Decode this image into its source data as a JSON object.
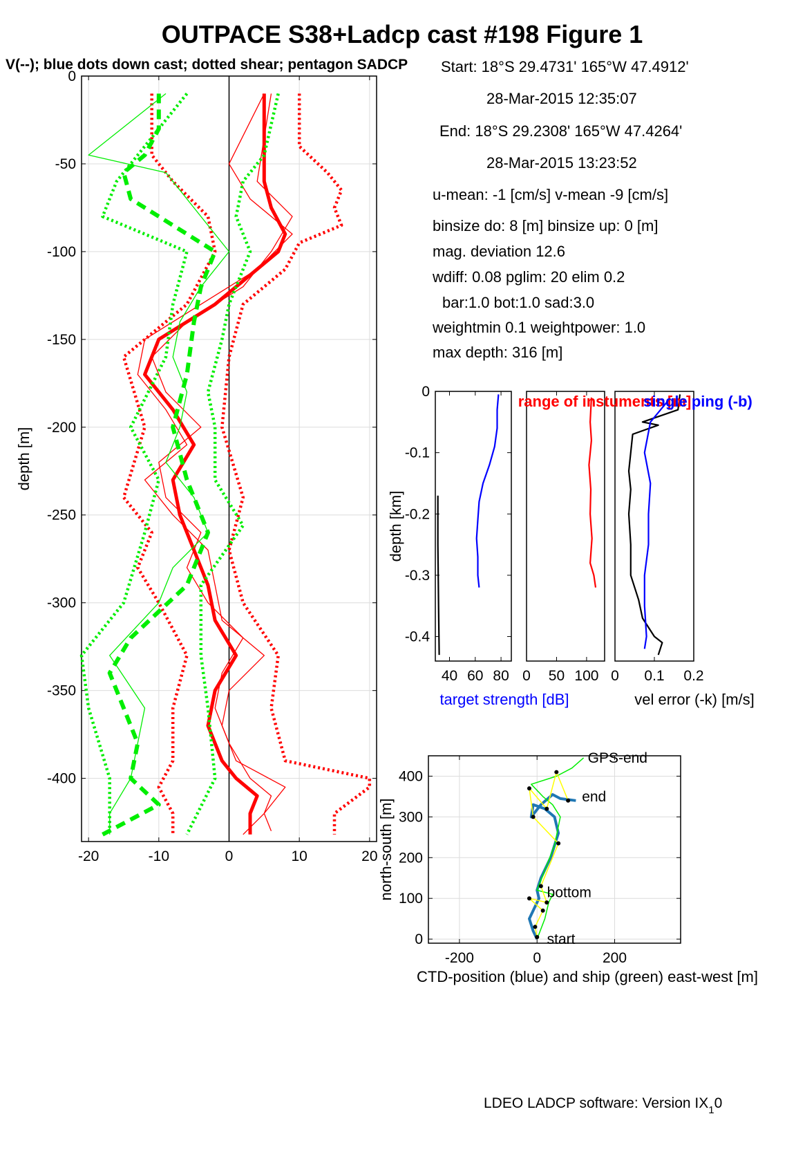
{
  "title": "OUTPACE S38+Ladcp cast #198  Figure 1",
  "subtitle": "V(--); blue dots down cast; dotted shear; pentagon SADCP",
  "info_lines": [
    "Start:  18°S 29.4731'      165°W 47.4912'",
    "28-Mar-2015 12:35:07",
    "End:   18°S 29.2308'      165°W 47.4264'",
    "28-Mar-2015 13:23:52",
    "u-mean:  -1 [cm/s]     v-mean  -9 [cm/s]",
    "binsize do: 8 [m]  binsize up:  0 [m]",
    "mag. deviation 12.6",
    "wdiff: 0.08  pglim: 20  elim 0.2",
    "bar:1.0 bot:1.0 sad:3.0",
    "weightmin 0.1  weightpower: 1.0",
    "max depth: 316 [m]"
  ],
  "footer": "LDEO LADCP software: Version IX",
  "footer_sub": "1",
  "footer_tail": "0",
  "colors": {
    "u": "#ff0000",
    "v": "#00ee00",
    "blue": "#0000ff",
    "black": "#000000",
    "yellow": "#ffff00",
    "ctd": "#1f77b4"
  },
  "chart_data": [
    {
      "type": "line",
      "id": "velocity_profile",
      "ylabel": "depth [m]",
      "xlim": [
        -21,
        21
      ],
      "ylim": [
        -436,
        0
      ],
      "xticks": [
        -20,
        -10,
        0,
        10,
        20
      ],
      "yticks": [
        0,
        -50,
        -100,
        -150,
        -200,
        -250,
        -300,
        -350,
        -400
      ],
      "grid": true,
      "series": [
        {
          "color": "u",
          "style": "thick",
          "depth": [
            -10,
            -60,
            -75,
            -90,
            -100,
            -110,
            -130,
            -150,
            -170,
            -190,
            -210,
            -230,
            -250,
            -270,
            -290,
            -310,
            -330,
            -350,
            -370,
            -390,
            -400,
            -410,
            -420,
            -432
          ],
          "x": [
            5,
            5,
            6,
            8,
            7,
            4,
            -2,
            -10,
            -12,
            -8,
            -5,
            -8,
            -7,
            -5,
            -3,
            -2,
            1,
            -2,
            -3,
            -1,
            1,
            4,
            3,
            3
          ]
        },
        {
          "color": "u",
          "style": "thin",
          "depth": [
            -10,
            -60,
            -80,
            -100,
            -120,
            -140,
            -160,
            -180,
            -200,
            -220,
            -240,
            -260,
            -280,
            -300,
            -320,
            -340,
            -360,
            -380,
            -400,
            -410,
            -420,
            -432
          ],
          "x": [
            6,
            4,
            9,
            6,
            2,
            -6,
            -11,
            -9,
            -4,
            -10,
            -9,
            -4,
            -6,
            -3,
            2,
            -1,
            -2,
            0,
            3,
            6,
            5,
            2
          ]
        },
        {
          "color": "u",
          "style": "thin",
          "depth": [
            -10,
            -50,
            -70,
            -90,
            -110,
            -130,
            -150,
            -170,
            -190,
            -210,
            -230,
            -250,
            -270,
            -290,
            -310,
            -330,
            -350,
            -370,
            -390,
            -405,
            -420,
            -430
          ],
          "x": [
            5,
            0,
            3,
            9,
            4,
            -4,
            -12,
            -13,
            -9,
            -6,
            -12,
            -8,
            -3,
            -2,
            -1,
            5,
            0,
            -1,
            1,
            8,
            5,
            6
          ]
        },
        {
          "color": "u",
          "style": "dotted",
          "depth": [
            -10,
            -45,
            -60,
            -80,
            -100,
            -130,
            -160,
            -200,
            -240,
            -260,
            -280,
            -300,
            -330,
            -360,
            -390,
            -405,
            -420,
            -432
          ],
          "x": [
            -11,
            -11,
            -8,
            -3,
            -2,
            -6,
            -15,
            -12,
            -15,
            -11,
            -13,
            -10,
            -6,
            -8,
            -8,
            -10,
            -8,
            -8
          ]
        },
        {
          "color": "u",
          "style": "dotted",
          "depth": [
            -10,
            -40,
            -55,
            -65,
            -75,
            -85,
            -95,
            -110,
            -130,
            -160,
            -200,
            -240,
            -270,
            -300,
            -330,
            -360,
            -390,
            -400,
            -405,
            -420,
            -432
          ],
          "x": [
            10,
            10,
            14,
            16,
            15,
            16,
            10,
            8,
            2,
            0,
            -1,
            2,
            0,
            2,
            7,
            6,
            8,
            20,
            20,
            15,
            15
          ]
        },
        {
          "color": "v",
          "style": "dashed-thick",
          "depth": [
            -10,
            -30,
            -45,
            -55,
            -70,
            -85,
            -100,
            -120,
            -140,
            -170,
            -200,
            -230,
            -260,
            -290,
            -320,
            -340,
            -360,
            -380,
            -400,
            -415,
            -432
          ],
          "x": [
            -10,
            -10,
            -12,
            -15,
            -14,
            -8,
            -2,
            -4,
            -5,
            -6,
            -8,
            -6,
            -3,
            -6,
            -14,
            -17,
            -15,
            -13,
            -14,
            -10,
            -18
          ]
        },
        {
          "color": "v",
          "style": "thin",
          "depth": [
            -10,
            -45,
            -55,
            -80,
            -100,
            -120,
            -140,
            -160,
            -180,
            -200,
            -220,
            -240,
            -260,
            -280,
            -300,
            -330,
            -360,
            -380,
            -400,
            -420,
            -432
          ],
          "x": [
            -9,
            -20,
            -9,
            -4,
            0,
            -4,
            -7,
            -8,
            -6,
            -7,
            -9,
            -5,
            -3,
            -8,
            -10,
            -17,
            -12,
            -13,
            -14,
            -17,
            -17
          ]
        },
        {
          "color": "v",
          "style": "dotted",
          "depth": [
            -10,
            -40,
            -60,
            -80,
            -100,
            -130,
            -160,
            -200,
            -230,
            -260,
            -300,
            -330,
            -360,
            -400,
            -432
          ],
          "x": [
            -6,
            -12,
            -16,
            -18,
            -6,
            -8,
            -9,
            -14,
            -10,
            -12,
            -15,
            -21,
            -20,
            -17,
            -17
          ]
        },
        {
          "color": "v",
          "style": "dotted",
          "depth": [
            -10,
            -45,
            -60,
            -80,
            -100,
            -130,
            -150,
            -180,
            -200,
            -230,
            -256,
            -290,
            -330,
            -360,
            -400,
            -432
          ],
          "x": [
            7,
            5,
            2,
            1,
            3,
            0,
            -1,
            -3,
            -2,
            -2,
            2,
            -4,
            -4,
            -3,
            -2,
            -6
          ]
        }
      ]
    },
    {
      "type": "line",
      "id": "target_strength",
      "title": "range of instuments [m]",
      "title_color": "u",
      "ylabel": "depth [km]",
      "xlabel": "target strength [dB]",
      "xlim": [
        29,
        88
      ],
      "ylim": [
        -0.44,
        0
      ],
      "xticks": [
        40,
        60,
        80
      ],
      "yticks": [
        0,
        -0.1,
        -0.2,
        -0.3,
        -0.4
      ],
      "series": [
        {
          "color": "blue",
          "depth": [
            -0.005,
            -0.03,
            -0.06,
            -0.09,
            -0.12,
            -0.15,
            -0.18,
            -0.21,
            -0.24,
            -0.27,
            -0.3,
            -0.32
          ],
          "x": [
            78,
            77,
            77,
            75,
            71,
            66,
            63,
            62,
            61,
            62,
            62,
            63
          ]
        },
        {
          "color": "black",
          "depth": [
            -0.17,
            -0.25,
            -0.35,
            -0.43
          ],
          "x": [
            31,
            31,
            31.5,
            32
          ]
        }
      ]
    },
    {
      "type": "line",
      "id": "range",
      "xlim": [
        0,
        130
      ],
      "ylim": [
        -0.44,
        0
      ],
      "xticks": [
        0,
        50,
        100
      ],
      "series": [
        {
          "color": "u",
          "depth": [
            -0.01,
            -0.05,
            -0.08,
            -0.12,
            -0.16,
            -0.2,
            -0.24,
            -0.28,
            -0.3,
            -0.32
          ],
          "x": [
            108,
            106,
            108,
            104,
            107,
            106,
            109,
            106,
            112,
            115
          ]
        }
      ]
    },
    {
      "type": "line",
      "id": "vel_error",
      "title": "single ping (-b)",
      "title_color": "blue",
      "xlabel": "vel error (-k) [m/s]",
      "xlim": [
        0,
        0.2
      ],
      "ylim": [
        -0.44,
        0
      ],
      "xticks": [
        0,
        0.1,
        0.2
      ],
      "series": [
        {
          "color": "black",
          "depth": [
            -0.005,
            -0.03,
            -0.05,
            -0.055,
            -0.07,
            -0.1,
            -0.13,
            -0.16,
            -0.2,
            -0.25,
            -0.3,
            -0.34,
            -0.37,
            -0.4,
            -0.41,
            -0.43
          ],
          "x": [
            0.165,
            0.16,
            0.07,
            0.11,
            0.045,
            0.04,
            0.035,
            0.04,
            0.035,
            0.04,
            0.04,
            0.06,
            0.07,
            0.1,
            0.12,
            0.11
          ]
        },
        {
          "color": "blue",
          "depth": [
            -0.015,
            -0.05,
            -0.1,
            -0.15,
            -0.2,
            -0.25,
            -0.3,
            -0.35,
            -0.4,
            -0.42
          ],
          "x": [
            0.135,
            0.09,
            0.075,
            0.09,
            0.085,
            0.085,
            0.075,
            0.075,
            0.08,
            0.075
          ]
        }
      ]
    },
    {
      "type": "line",
      "id": "ship_track",
      "ylabel": "north-south [m]",
      "xlabel": "CTD-position (blue) and ship (green) east-west [m]",
      "xlim": [
        -280,
        370
      ],
      "ylim": [
        -10,
        450
      ],
      "xticks": [
        -200,
        0,
        200
      ],
      "yticks": [
        0,
        100,
        200,
        300,
        400
      ],
      "grid": true,
      "labels": [
        {
          "text": "GPS-end",
          "x": 120,
          "y": 445
        },
        {
          "text": "end",
          "x": 105,
          "y": 350
        },
        {
          "text": "bottom",
          "x": 15,
          "y": 115
        },
        {
          "text": "start",
          "x": 15,
          "y": 0
        }
      ],
      "series": [
        {
          "name": "ctd",
          "color": "ctd",
          "x": [
            0,
            -10,
            -20,
            -5,
            5,
            0,
            10,
            35,
            55,
            45,
            20,
            -10,
            -15,
            10,
            40,
            60,
            100
          ],
          "y": [
            0,
            20,
            50,
            80,
            100,
            120,
            150,
            200,
            260,
            300,
            320,
            330,
            300,
            330,
            355,
            345,
            340
          ]
        },
        {
          "name": "ship",
          "color": "v",
          "x": [
            0,
            20,
            30,
            40,
            0,
            45,
            60,
            40,
            15,
            -15,
            50,
            90,
            120
          ],
          "y": [
            0,
            50,
            90,
            110,
            120,
            230,
            300,
            330,
            350,
            380,
            400,
            420,
            445
          ]
        },
        {
          "name": "ensemble",
          "color": "yellow",
          "x": [
            0,
            -5,
            15,
            -20,
            25,
            10,
            55,
            -10,
            -20,
            25,
            50,
            80
          ],
          "y": [
            5,
            30,
            70,
            100,
            90,
            130,
            235,
            300,
            370,
            320,
            410,
            340
          ]
        }
      ]
    }
  ]
}
